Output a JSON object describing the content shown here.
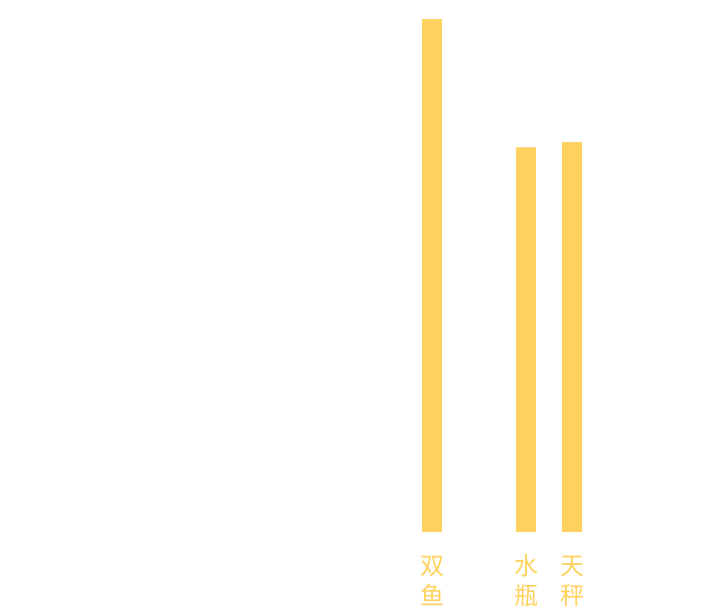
{
  "chart_data": {
    "type": "bar",
    "categories": [
      "双鱼",
      "水瓶",
      "天秤"
    ],
    "values": [
      100,
      75,
      76
    ],
    "ylim": [
      0,
      100
    ],
    "bar_color": "#FFD25F",
    "label_color": "#FFD25F",
    "grid": false,
    "legend": "none",
    "title": "",
    "xlabel": "",
    "ylabel": ""
  }
}
